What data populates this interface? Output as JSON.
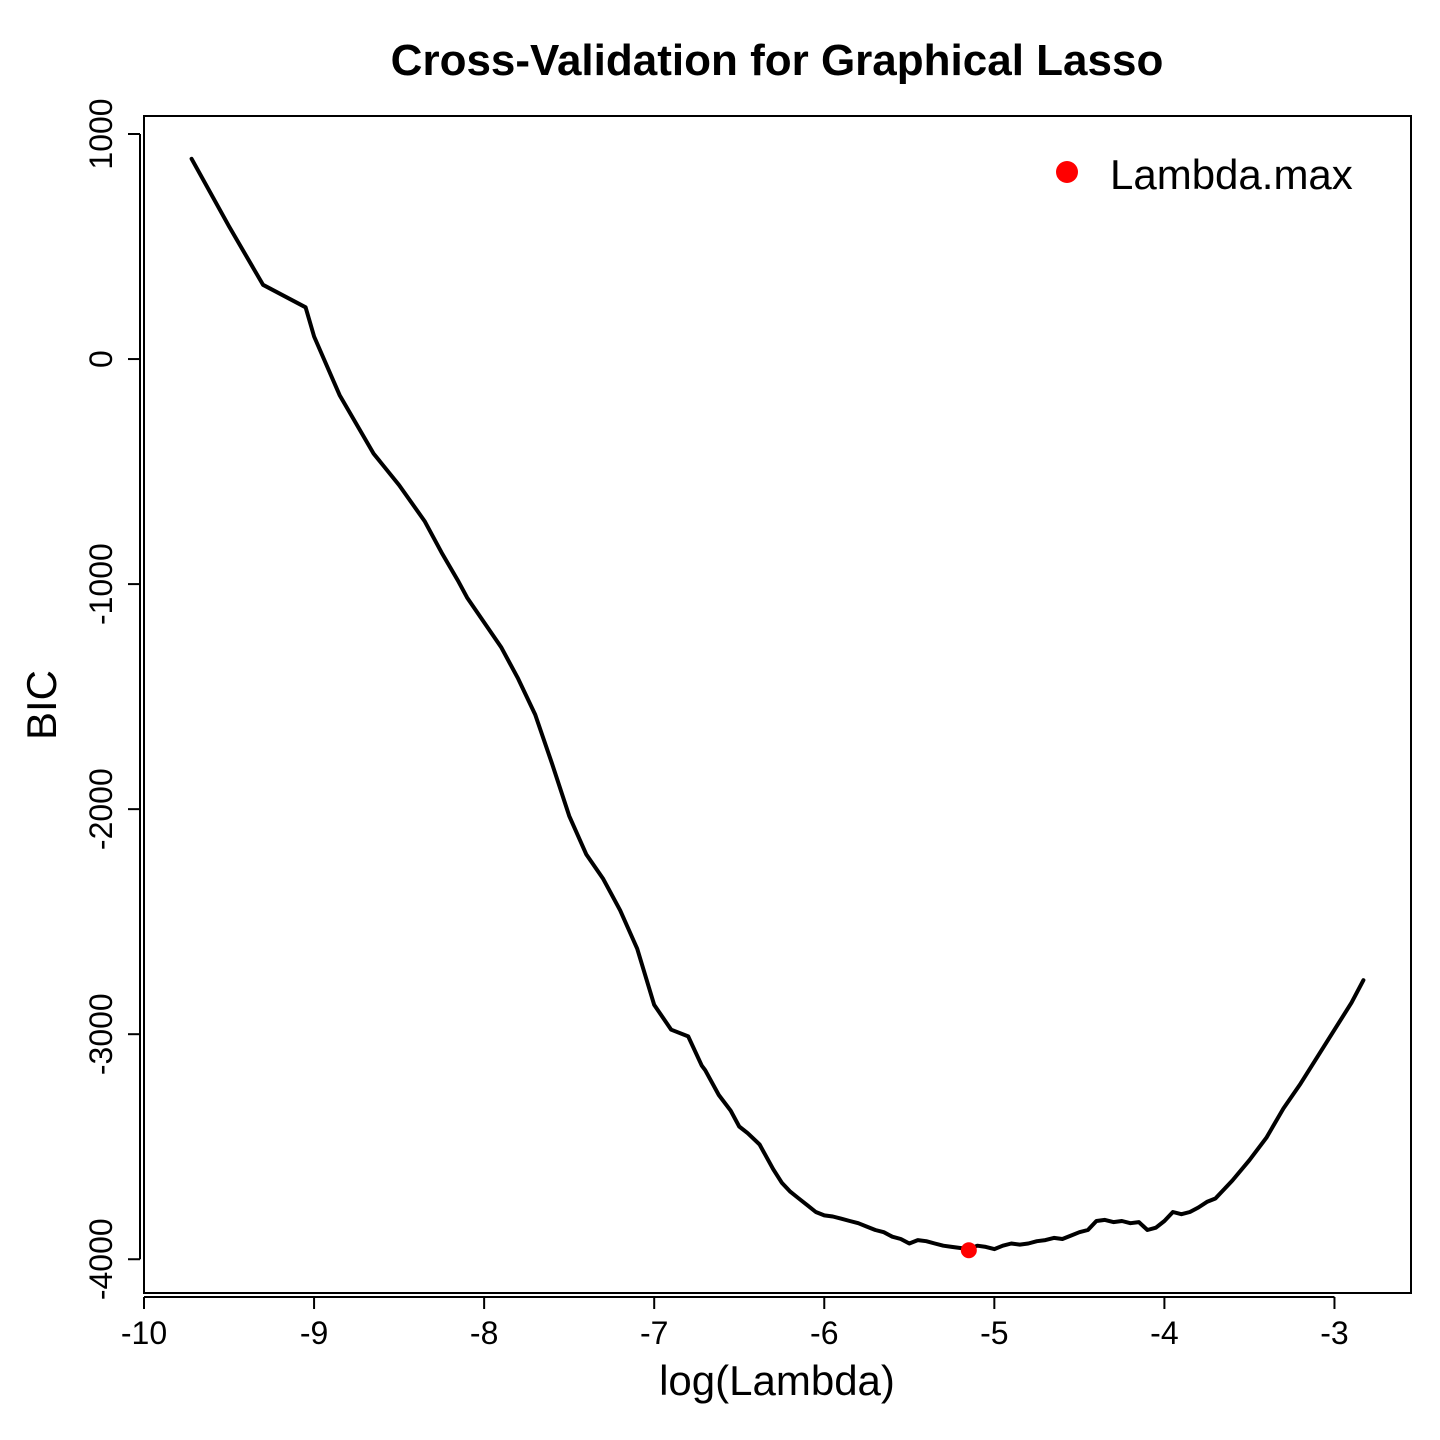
{
  "chart_data": {
    "type": "line",
    "title": "Cross-Validation for Graphical Lasso",
    "xlabel": "log(Lambda)",
    "ylabel": "BIC",
    "xlim": [
      -10,
      -2.55
    ],
    "ylim": [
      -4150,
      1080
    ],
    "x_ticks": [
      -10,
      -9,
      -8,
      -7,
      -6,
      -5,
      -4,
      -3
    ],
    "y_ticks": [
      -4000,
      -3000,
      -2000,
      -1000,
      0,
      1000
    ],
    "x_tick_labels": [
      "-10",
      "-9",
      "-8",
      "-7",
      "-6",
      "-5",
      "-4",
      "-3"
    ],
    "y_tick_labels": [
      "-4000",
      "-3000",
      "-2000",
      "-1000",
      "0",
      "1000"
    ],
    "grid": false,
    "legend": {
      "position": "top-right",
      "entries": [
        {
          "label": "Lambda.max",
          "color": "#ff0000",
          "marker": "filled-circle"
        }
      ]
    },
    "series": [
      {
        "color": "#000000",
        "x": [
          -9.72,
          -9.5,
          -9.3,
          -9.05,
          -9.0,
          -8.85,
          -8.65,
          -8.5,
          -8.35,
          -8.25,
          -8.15,
          -8.1,
          -8.0,
          -7.9,
          -7.8,
          -7.7,
          -7.6,
          -7.5,
          -7.4,
          -7.3,
          -7.2,
          -7.1,
          -7.0,
          -6.9,
          -6.8,
          -6.72,
          -6.7,
          -6.62,
          -6.55,
          -6.5,
          -6.45,
          -6.38,
          -6.3,
          -6.25,
          -6.2,
          -6.15,
          -6.1,
          -6.05,
          -6.0,
          -5.95,
          -5.9,
          -5.85,
          -5.8,
          -5.75,
          -5.7,
          -5.65,
          -5.6,
          -5.55,
          -5.5,
          -5.45,
          -5.4,
          -5.35,
          -5.3,
          -5.25,
          -5.2,
          -5.15,
          -5.1,
          -5.05,
          -5.0,
          -4.95,
          -4.9,
          -4.85,
          -4.8,
          -4.75,
          -4.7,
          -4.65,
          -4.6,
          -4.55,
          -4.5,
          -4.45,
          -4.4,
          -4.35,
          -4.3,
          -4.25,
          -4.2,
          -4.15,
          -4.1,
          -4.05,
          -4.0,
          -3.95,
          -3.9,
          -3.85,
          -3.8,
          -3.75,
          -3.7,
          -3.6,
          -3.5,
          -3.4,
          -3.3,
          -3.2,
          -3.1,
          -3.0,
          -2.9,
          -2.83
        ],
        "values": [
          890,
          590,
          330,
          230,
          100,
          -160,
          -420,
          -560,
          -720,
          -860,
          -990,
          -1060,
          -1170,
          -1280,
          -1420,
          -1580,
          -1800,
          -2030,
          -2200,
          -2310,
          -2450,
          -2620,
          -2870,
          -2980,
          -3010,
          -3140,
          -3160,
          -3270,
          -3340,
          -3410,
          -3440,
          -3490,
          -3600,
          -3660,
          -3700,
          -3730,
          -3760,
          -3790,
          -3805,
          -3810,
          -3820,
          -3830,
          -3840,
          -3855,
          -3870,
          -3880,
          -3900,
          -3910,
          -3930,
          -3915,
          -3920,
          -3930,
          -3940,
          -3945,
          -3950,
          -3955,
          -3940,
          -3945,
          -3955,
          -3940,
          -3930,
          -3935,
          -3930,
          -3920,
          -3915,
          -3905,
          -3910,
          -3895,
          -3880,
          -3870,
          -3830,
          -3825,
          -3835,
          -3830,
          -3840,
          -3835,
          -3870,
          -3860,
          -3830,
          -3790,
          -3800,
          -3790,
          -3770,
          -3745,
          -3730,
          -3650,
          -3560,
          -3460,
          -3330,
          -3220,
          -3100,
          -2980,
          -2860,
          -2760
        ]
      }
    ],
    "highlight_point": {
      "label": "Lambda.max",
      "x": -5.15,
      "y": -3960,
      "color": "#ff0000"
    }
  }
}
